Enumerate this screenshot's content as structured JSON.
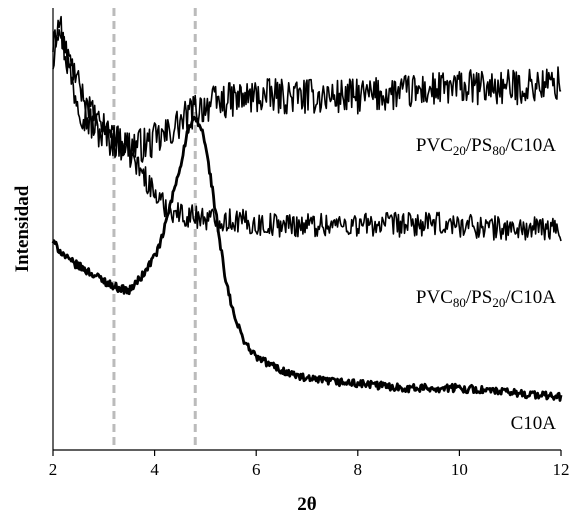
{
  "chart_data": {
    "type": "line",
    "xlabel": "2θ",
    "ylabel": "Intensidad",
    "xlim": [
      2,
      12
    ],
    "xticks": [
      "2",
      "4",
      "6",
      "8",
      "10",
      "12"
    ],
    "y_tick_labels_shown": false,
    "y_units": "arbitrary (relative intensity)",
    "ylim": [
      0,
      100
    ],
    "reference_lines": [
      3.2,
      4.8
    ],
    "reference_line_color": "#bbbbbb",
    "series": [
      {
        "name": "PVC20/PS80/C10A",
        "label_parts": [
          [
            "PVC",
            ""
          ],
          [
            "20",
            "sub"
          ],
          [
            "/PS",
            ""
          ],
          [
            "80",
            "sub"
          ],
          [
            "/C10A",
            ""
          ]
        ],
        "line_width": 1.6,
        "noise": 4.0,
        "x": [
          2.0,
          2.1,
          2.2,
          2.4,
          2.6,
          2.8,
          3.0,
          3.2,
          3.4,
          3.6,
          3.8,
          4.0,
          4.2,
          4.4,
          4.6,
          4.8,
          5.0,
          5.4,
          6.0,
          7.0,
          8.0,
          9.0,
          10.0,
          11.0,
          12.0
        ],
        "values": [
          88,
          100,
          92,
          82,
          76,
          73,
          71,
          70,
          69,
          69,
          69,
          70,
          71,
          73,
          75,
          77,
          78,
          79,
          80,
          80,
          80,
          81,
          82,
          82,
          83
        ]
      },
      {
        "name": "PVC80/PS20/C10A",
        "label_parts": [
          [
            "PVC",
            ""
          ],
          [
            "80",
            "sub"
          ],
          [
            "/PS",
            ""
          ],
          [
            "20",
            "sub"
          ],
          [
            "/C10A",
            ""
          ]
        ],
        "line_width": 1.6,
        "noise": 2.8,
        "x": [
          2.0,
          2.1,
          2.3,
          2.6,
          2.9,
          3.2,
          3.5,
          3.8,
          4.0,
          4.2,
          4.4,
          4.6,
          4.8,
          5.2,
          5.6,
          6.0,
          7.0,
          8.0,
          9.0,
          10.0,
          11.0,
          12.0
        ],
        "values": [
          91,
          95,
          89,
          80,
          74,
          72,
          67,
          62,
          58,
          55,
          54,
          53,
          53,
          52,
          52,
          51,
          51,
          51,
          51,
          51,
          50,
          50
        ]
      },
      {
        "name": "C10A",
        "label_parts": [
          [
            "C10A",
            ""
          ]
        ],
        "line_width": 2.8,
        "noise": 0.9,
        "x": [
          2.0,
          2.3,
          2.6,
          2.9,
          3.2,
          3.5,
          3.8,
          4.1,
          4.3,
          4.5,
          4.65,
          4.8,
          4.95,
          5.1,
          5.25,
          5.4,
          5.6,
          5.8,
          6.0,
          6.5,
          7.0,
          8.0,
          9.0,
          10.0,
          11.0,
          12.0
        ],
        "values": [
          47,
          43,
          41,
          39,
          37,
          36,
          40,
          46,
          55,
          64,
          72,
          75,
          72,
          62,
          50,
          38,
          29,
          24,
          21,
          18,
          16,
          15,
          14,
          14,
          13,
          12
        ]
      }
    ]
  }
}
